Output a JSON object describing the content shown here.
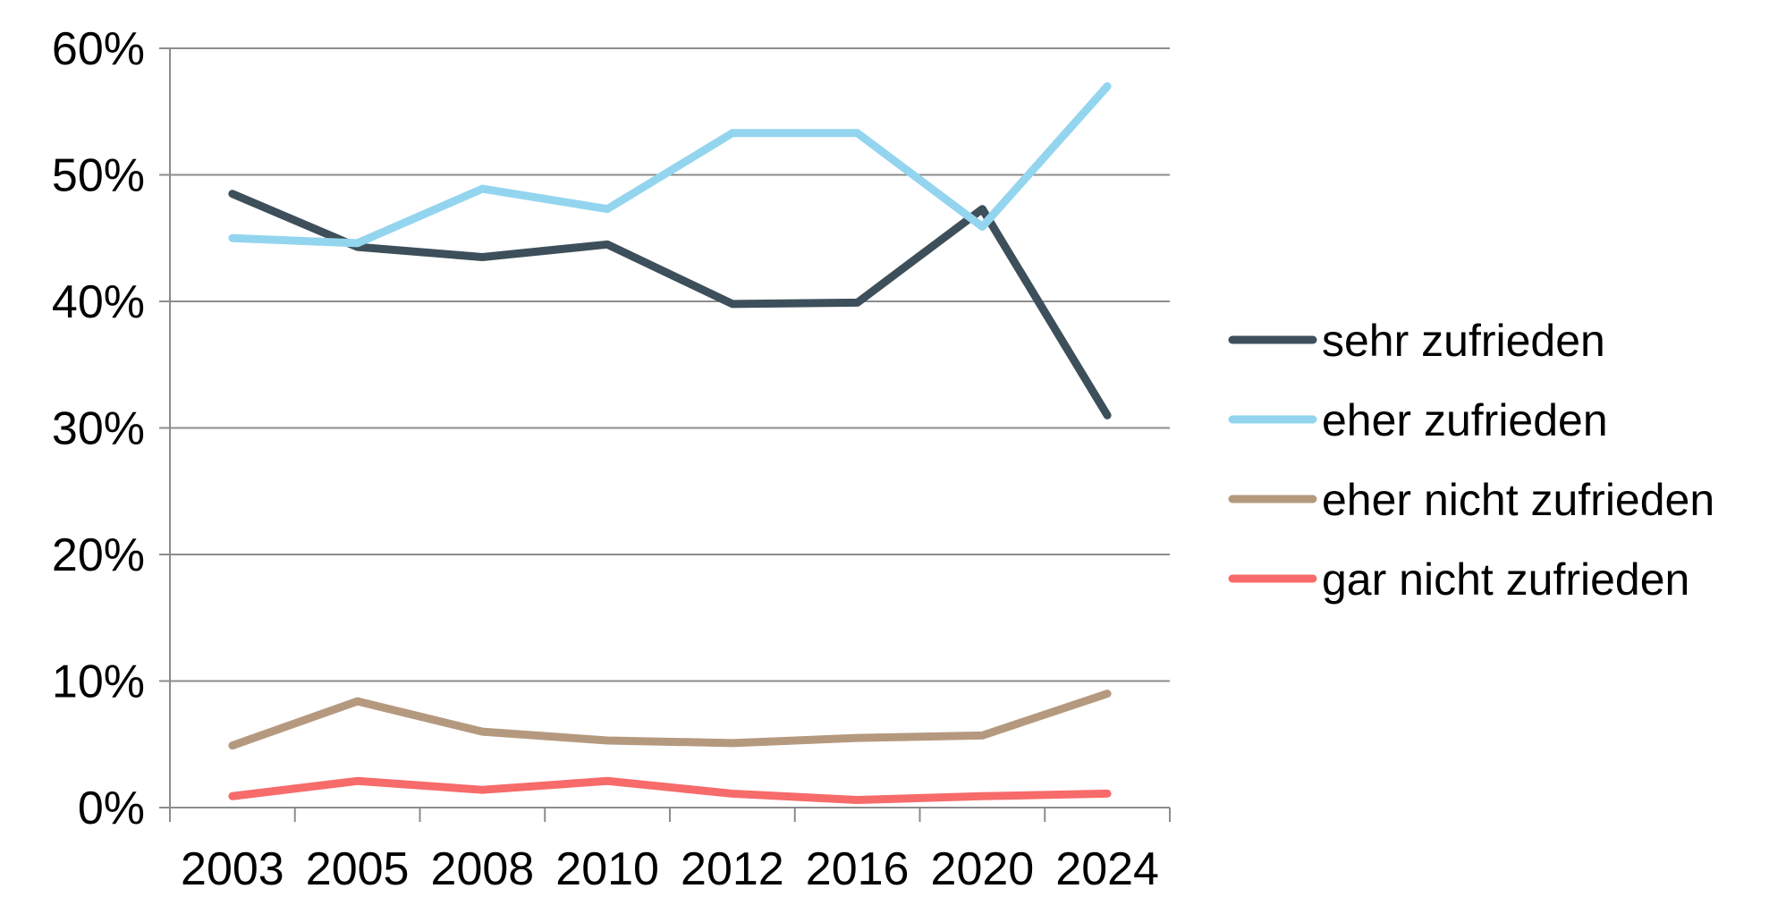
{
  "chart_data": {
    "type": "line",
    "title": "",
    "xlabel": "",
    "ylabel": "",
    "categories": [
      "2003",
      "2005",
      "2008",
      "2010",
      "2012",
      "2016",
      "2020",
      "2024"
    ],
    "y_tick_labels": [
      "0%",
      "10%",
      "20%",
      "30%",
      "40%",
      "50%",
      "60%"
    ],
    "y_unit": "%",
    "ylim": [
      0,
      60
    ],
    "grid": true,
    "legend_position": "right",
    "series": [
      {
        "name": "sehr zufrieden",
        "color": "#3d4f5a",
        "values": [
          48.5,
          44.3,
          43.5,
          44.5,
          39.8,
          39.9,
          47.3,
          31.0
        ]
      },
      {
        "name": "eher zufrieden",
        "color": "#93d5ee",
        "values": [
          45.0,
          44.6,
          48.9,
          47.3,
          53.3,
          53.3,
          45.9,
          57.0
        ]
      },
      {
        "name": "eher nicht zufrieden",
        "color": "#b5997f",
        "values": [
          4.9,
          8.4,
          6.0,
          5.3,
          5.1,
          5.5,
          5.7,
          9.0
        ]
      },
      {
        "name": "gar nicht zufrieden",
        "color": "#f76b6a",
        "values": [
          0.9,
          2.1,
          1.4,
          2.1,
          1.1,
          0.6,
          0.9,
          1.1
        ]
      }
    ]
  }
}
